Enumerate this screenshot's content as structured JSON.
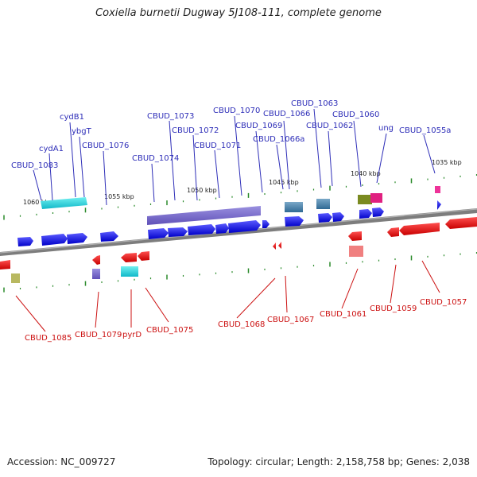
{
  "title": "Coxiella burnetii Dugway 5J108-111, complete genome",
  "footer": {
    "accession": "Accession: NC_009727",
    "stats": "Topology: circular; Length: 2,158,758 bp; Genes: 2,038"
  },
  "colors": {
    "forward_gene": "#1010e0",
    "reverse_gene": "#e01010",
    "top_label": "#2e2eb8",
    "bottom_label": "#cc1111",
    "tick": "#2a8a2a",
    "backbone": "#808080"
  },
  "kbp_ticks": [
    "1060 kbp",
    "1055 kbp",
    "1050 kbp",
    "1045 kbp",
    "1040 kbp",
    "1035 kbp"
  ],
  "top_labels": [
    "CBUD_1083",
    "cydA1",
    "cydB1",
    "ybgT",
    "CBUD_1076",
    "CBUD_1074",
    "CBUD_1073",
    "CBUD_1072",
    "CBUD_1071",
    "CBUD_1070",
    "CBUD_1069",
    "CBUD_1066",
    "CBUD_1066a",
    "CBUD_1063",
    "CBUD_1062",
    "CBUD_1060",
    "ung",
    "CBUD_1055a"
  ],
  "bottom_labels": [
    "CBUD_1085",
    "CBUD_1079",
    "pyrD",
    "CBUD_1075",
    "CBUD_1068",
    "CBUD_1067",
    "CBUD_1061",
    "CBUD_1059",
    "CBUD_1057"
  ]
}
